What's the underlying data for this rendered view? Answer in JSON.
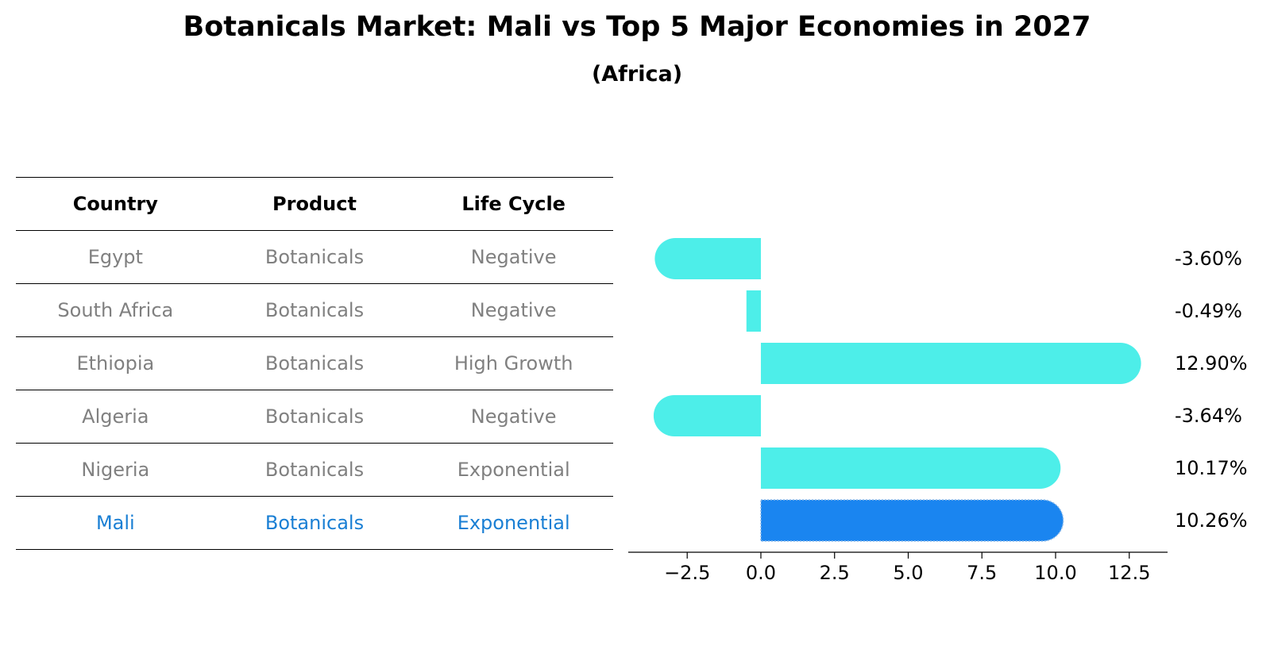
{
  "title": "Botanicals Market: Mali vs Top 5 Major Economies in 2027",
  "subtitle": "(Africa)",
  "table": {
    "headers": [
      "Country",
      "Product",
      "Life Cycle"
    ],
    "rows": [
      {
        "country": "Egypt",
        "product": "Botanicals",
        "life_cycle": "Negative"
      },
      {
        "country": "South Africa",
        "product": "Botanicals",
        "life_cycle": "Negative"
      },
      {
        "country": "Ethiopia",
        "product": "Botanicals",
        "life_cycle": "High Growth"
      },
      {
        "country": "Algeria",
        "product": "Botanicals",
        "life_cycle": "Negative"
      },
      {
        "country": "Nigeria",
        "product": "Botanicals",
        "life_cycle": "Exponential"
      },
      {
        "country": "Mali",
        "product": "Botanicals",
        "life_cycle": "Exponential"
      }
    ]
  },
  "colors": {
    "bar": "#4deee9",
    "highlight_bar": "#1a85f0",
    "highlight_text": "#1a7fd4",
    "muted_text": "#808080"
  },
  "chart_data": {
    "type": "bar",
    "orientation": "horizontal",
    "categories": [
      "Egypt",
      "South Africa",
      "Ethiopia",
      "Algeria",
      "Nigeria",
      "Mali"
    ],
    "values": [
      -3.6,
      -0.49,
      12.9,
      -3.64,
      10.17,
      10.26
    ],
    "labels": [
      "-3.60%",
      "-0.49%",
      "12.90%",
      "-3.64%",
      "10.17%",
      "10.26%"
    ],
    "highlight": "Mali",
    "xlim": [
      -4.5,
      13.8
    ],
    "xticks": [
      -2.5,
      0.0,
      2.5,
      5.0,
      7.5,
      10.0,
      12.5
    ],
    "xtick_labels": [
      "−2.5",
      "0.0",
      "2.5",
      "5.0",
      "7.5",
      "10.0",
      "12.5"
    ]
  }
}
